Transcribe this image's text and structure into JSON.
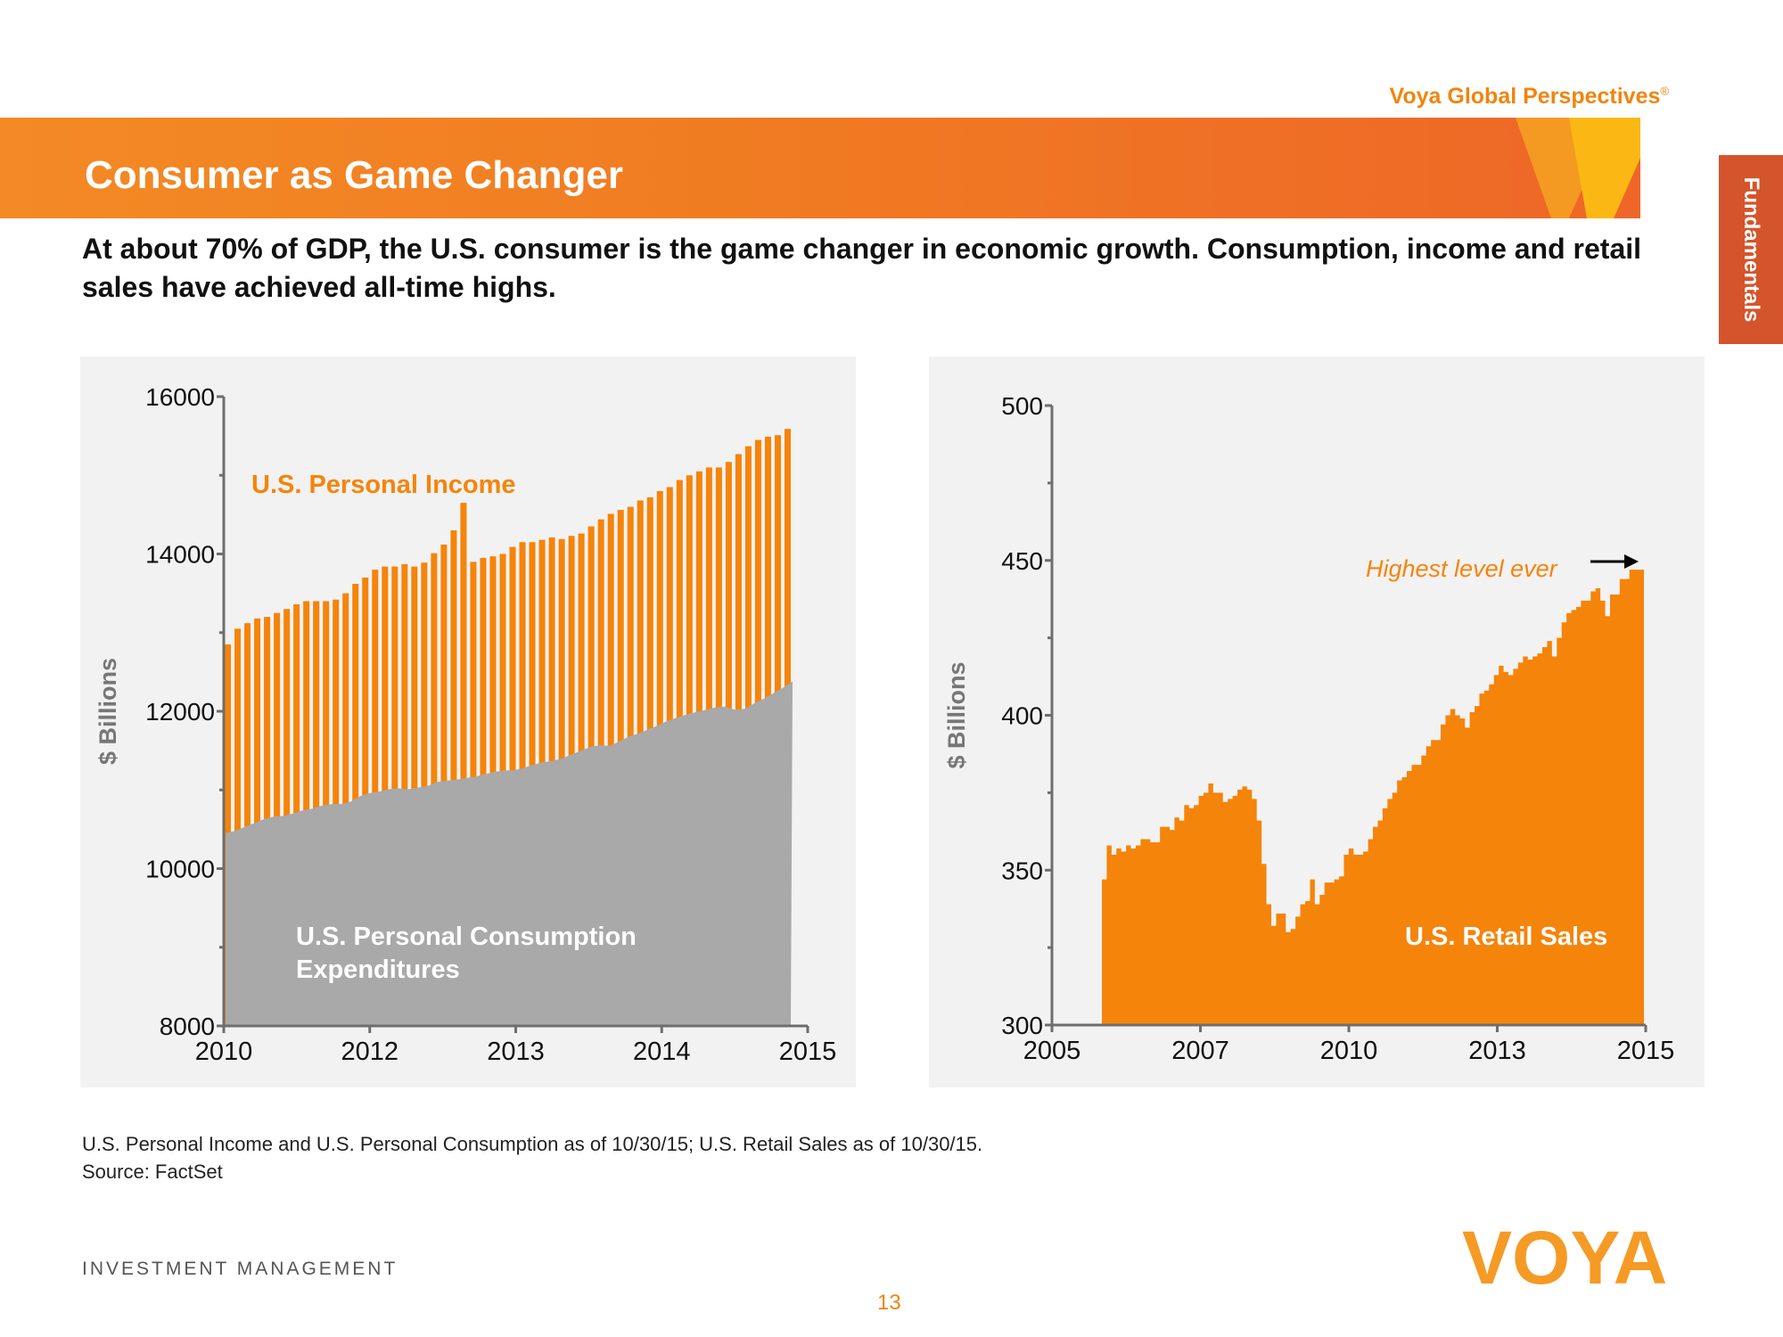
{
  "header": {
    "brand": "Voya Global Perspectives",
    "brand_mark": "®",
    "title": "Consumer as Game Changer",
    "side_tab": "Fundamentals",
    "subtitle": "At about 70% of GDP, the U.S. consumer is the game changer in economic growth. Consumption, income and retail sales have achieved all-time highs."
  },
  "colors": {
    "orange": "#f5840a",
    "gray": "#a9a9a9",
    "banner": "#f07a22",
    "side_tab": "#d4552b",
    "panel": "#f2f2f2"
  },
  "chart_data": [
    {
      "type": "bar",
      "title": "",
      "xlabel": "",
      "ylabel": "$ Billions",
      "ylim": [
        8000,
        16000
      ],
      "yticks": [
        "16000",
        "14000",
        "12000",
        "10000",
        "8000"
      ],
      "xticks": [
        "2010",
        "2012",
        "2013",
        "2014",
        "2015"
      ],
      "grid": false,
      "series": [
        {
          "name": "U.S. Personal Income",
          "kind": "bar",
          "color": "#f5840a",
          "values": [
            12850,
            13050,
            13120,
            13180,
            13200,
            13250,
            13300,
            13360,
            13400,
            13400,
            13400,
            13420,
            13500,
            13620,
            13700,
            13800,
            13840,
            13840,
            13870,
            13840,
            13890,
            14010,
            14120,
            14300,
            14650,
            13900,
            13950,
            13970,
            14000,
            14090,
            14150,
            14150,
            14180,
            14210,
            14190,
            14230,
            14260,
            14350,
            14440,
            14510,
            14560,
            14600,
            14680,
            14720,
            14800,
            14850,
            14940,
            15000,
            15050,
            15100,
            15100,
            15170,
            15270,
            15370,
            15450,
            15490,
            15510,
            15590
          ]
        },
        {
          "name": "U.S. Personal Consumption Expenditures",
          "kind": "area",
          "color": "#a9a9a9",
          "values": [
            10450,
            10480,
            10530,
            10580,
            10630,
            10660,
            10670,
            10700,
            10740,
            10760,
            10800,
            10820,
            10820,
            10850,
            10920,
            10960,
            10980,
            11010,
            11020,
            11010,
            11030,
            11050,
            11100,
            11120,
            11130,
            11150,
            11170,
            11200,
            11230,
            11250,
            11250,
            11280,
            11320,
            11350,
            11370,
            11400,
            11450,
            11500,
            11550,
            11570,
            11560,
            11620,
            11680,
            11720,
            11770,
            11820,
            11880,
            11920,
            11960,
            11990,
            12020,
            12050,
            12060,
            12020,
            12030,
            12100,
            12160,
            12230,
            12300,
            12380
          ]
        }
      ],
      "annotations": [
        "U.S. Personal Income",
        "U.S. Personal Consumption Expenditures"
      ]
    },
    {
      "type": "area",
      "title": "",
      "xlabel": "",
      "ylabel": "$ Billions",
      "ylim": [
        300,
        500
      ],
      "yticks": [
        "500",
        "450",
        "400",
        "350",
        "300"
      ],
      "xticks": [
        "2005",
        "2007",
        "2010",
        "2013",
        "2015"
      ],
      "grid": false,
      "series": [
        {
          "name": "U.S. Retail Sales",
          "color": "#f5840a",
          "values": [
            347,
            358,
            355,
            357,
            356,
            358,
            357,
            358,
            360,
            360,
            359,
            359,
            364,
            364,
            363,
            367,
            366,
            371,
            370,
            371,
            374,
            375,
            378,
            375,
            375,
            372,
            373,
            374,
            376,
            377,
            376,
            373,
            366,
            352,
            339,
            332,
            336,
            336,
            330,
            331,
            335,
            339,
            340,
            347,
            339,
            342,
            346,
            346,
            347,
            348,
            355,
            357,
            355,
            355,
            356,
            360,
            364,
            366,
            370,
            373,
            375,
            379,
            380,
            382,
            384,
            384,
            387,
            390,
            392,
            392,
            397,
            400,
            402,
            400,
            399,
            396,
            401,
            403,
            407,
            408,
            410,
            413,
            416,
            414,
            413,
            415,
            417,
            419,
            418,
            419,
            420,
            422,
            424,
            419,
            425,
            430,
            433,
            434,
            435,
            437,
            437,
            440,
            441,
            437,
            432,
            439,
            439,
            444,
            444,
            447,
            447,
            447
          ]
        }
      ],
      "annotations": [
        "Highest level ever",
        "U.S. Retail Sales"
      ]
    }
  ],
  "footer": {
    "note": "U.S. Personal Income and U.S. Personal Consumption as of 10/30/15; U.S. Retail Sales as of 10/30/15.",
    "source": "Source: FactSet",
    "division": "INVESTMENT MANAGEMENT",
    "page_number": "13",
    "logo_text": "VOYA"
  }
}
